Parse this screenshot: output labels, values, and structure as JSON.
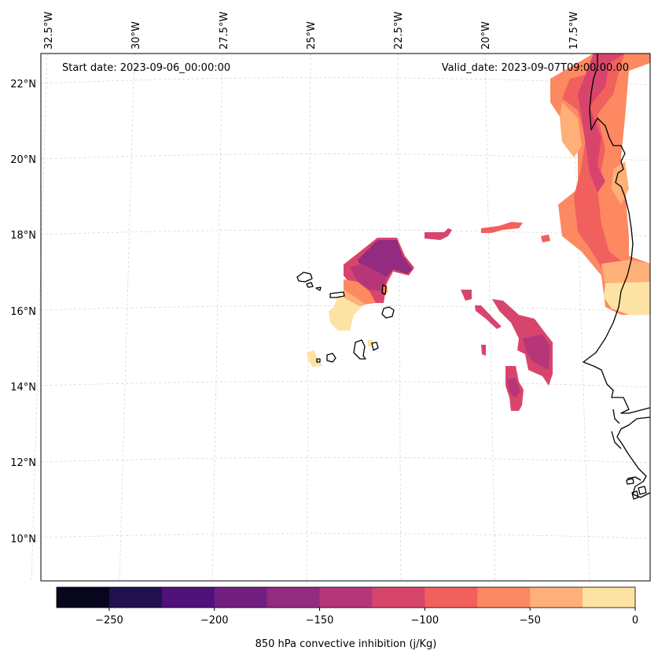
{
  "map": {
    "start_date": "Start date: 2023-09-06_00:00:00",
    "valid_date": "Valid_date: 2023-09-07T09:00:00.00",
    "lon_labels": [
      "32.5°W",
      "30°W",
      "27.5°W",
      "25°W",
      "22.5°W",
      "20°W",
      "17.5°W"
    ],
    "lat_labels": [
      "22°N",
      "20°N",
      "18°N",
      "16°N",
      "14°N",
      "12°N",
      "10°N"
    ],
    "extent": {
      "lon_min": -32.5,
      "lon_max": -16.0,
      "lat_min": 9.0,
      "lat_max": 22.8
    },
    "gridlines": true
  },
  "colorbar": {
    "label": "850 hPa convective inhibition (j/Kg)",
    "tick_labels": [
      "−250",
      "−200",
      "−150",
      "−100",
      "−50",
      "0"
    ],
    "levels": [
      -275,
      -250,
      -225,
      -200,
      -175,
      -150,
      -125,
      -100,
      -75,
      -50,
      -25,
      0
    ],
    "colors": [
      "#07061c",
      "#221150",
      "#4f117b",
      "#721f81",
      "#932b80",
      "#b63679",
      "#d8456c",
      "#f1605d",
      "#fc8961",
      "#feb078",
      "#fde3a3"
    ],
    "colormap": "magma"
  }
}
